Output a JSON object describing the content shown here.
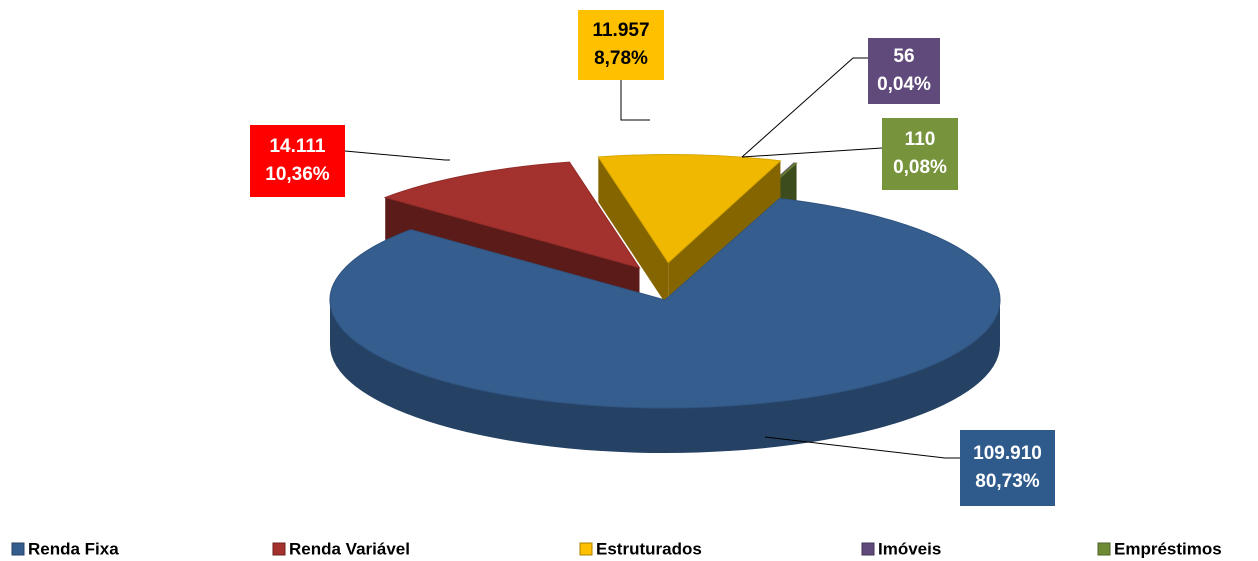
{
  "chart_data": {
    "type": "pie3d",
    "categories": [
      "Renda Fixa",
      "Renda Variável",
      "Estruturados",
      "Imóveis",
      "Empréstimos"
    ],
    "values": [
      109910,
      14111,
      11957,
      56,
      110
    ],
    "value_labels": [
      "109.910",
      "14.111",
      "11.957",
      "56",
      "110"
    ],
    "shares": [
      80.73,
      10.36,
      8.78,
      0.04,
      0.08
    ],
    "share_labels": [
      "80,73%",
      "10,36%",
      "8,78%",
      "0,04%",
      "0,08%"
    ],
    "colors": [
      "#355d8e",
      "#a3312d",
      "#f0b800",
      "#604a7b",
      "#6f8a35"
    ],
    "label_colors": [
      "#2f5b8c",
      "#ff0000",
      "#ffc000",
      "#604a7b",
      "#77933c"
    ],
    "legend": "bottom"
  }
}
